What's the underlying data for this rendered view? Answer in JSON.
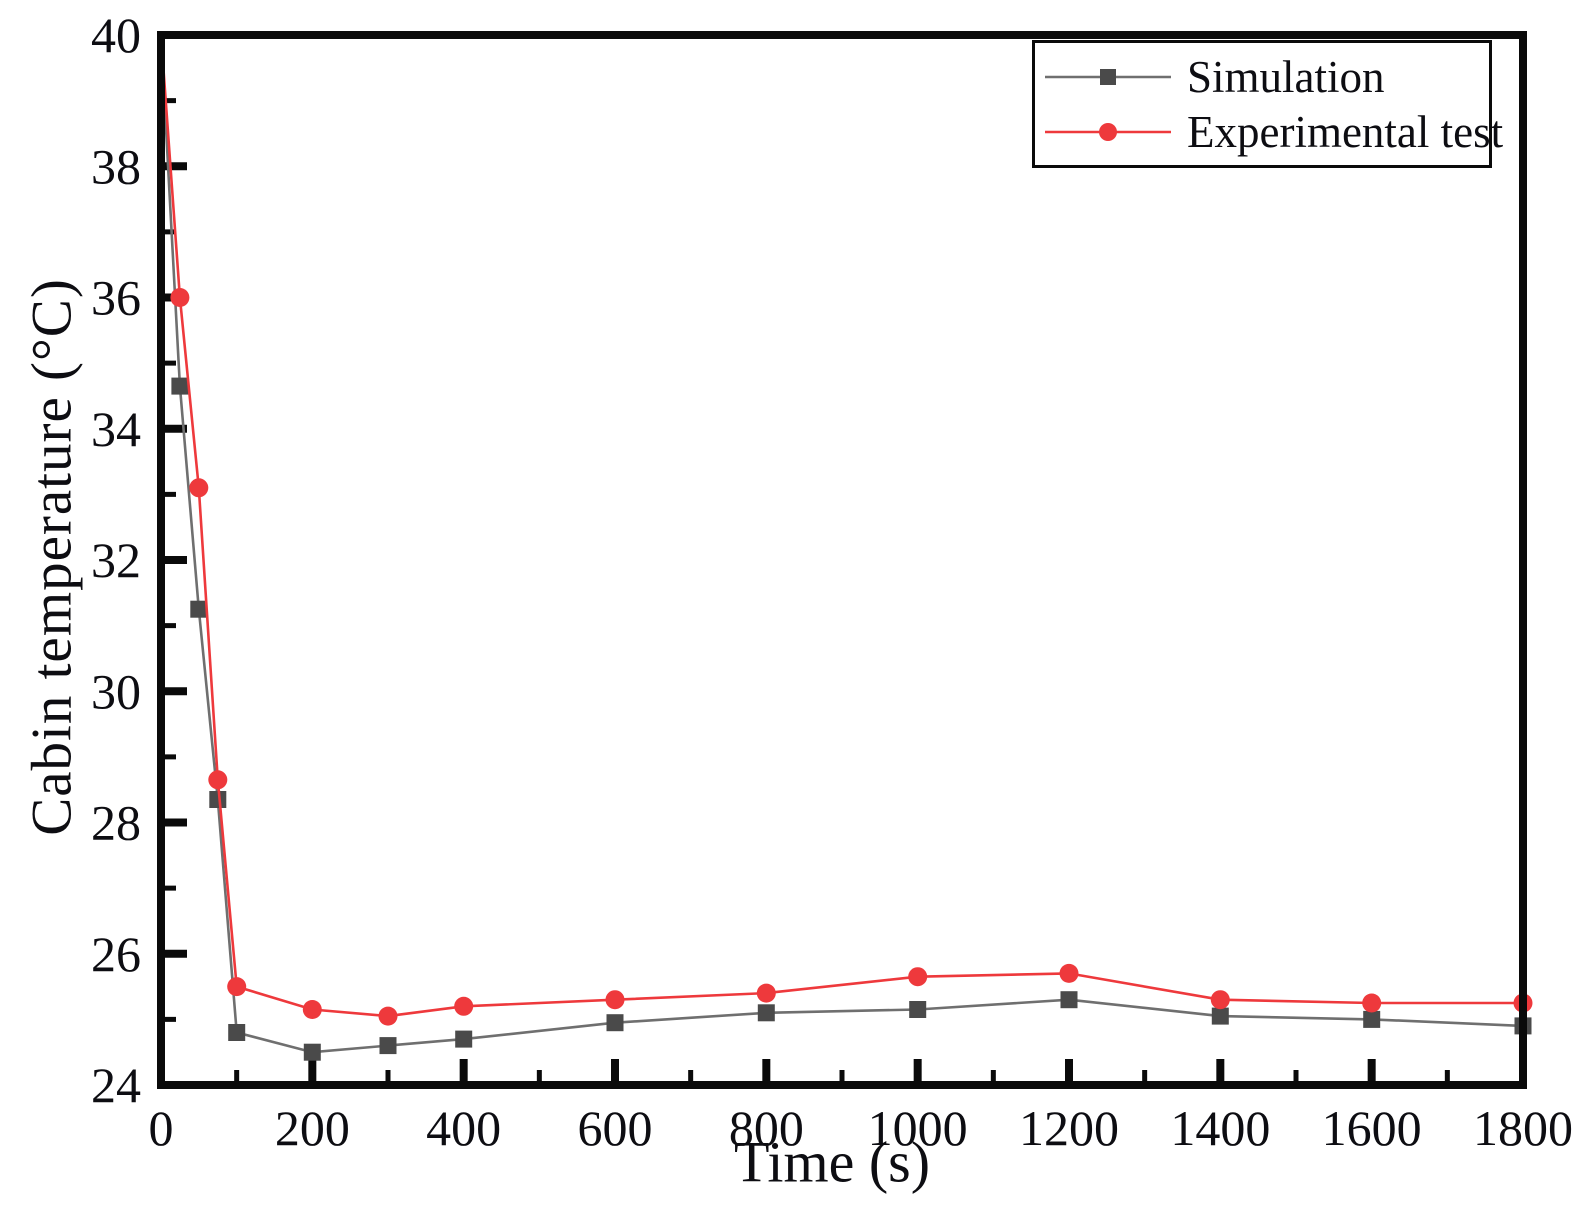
{
  "figure": {
    "background_color": "#ffffff",
    "axis_color": "#0a0a0a"
  },
  "chart_data": {
    "type": "line",
    "title": "",
    "xlabel": "Time (s)",
    "ylabel": "Cabin temperature (°C)",
    "xlim": [
      0,
      1800
    ],
    "ylim": [
      24,
      40
    ],
    "x_major_ticks": [
      0,
      200,
      400,
      600,
      800,
      1000,
      1200,
      1400,
      1600,
      1800
    ],
    "x_tick_labels": [
      "0",
      "200",
      "400",
      "600",
      "800",
      "1000",
      "1200",
      "1400",
      "1600",
      "1800"
    ],
    "x_minor_ticks": [
      100,
      300,
      500,
      700,
      900,
      1100,
      1300,
      1500,
      1700
    ],
    "y_major_ticks": [
      24,
      26,
      28,
      30,
      32,
      34,
      36,
      38,
      40
    ],
    "y_tick_labels": [
      "24",
      "26",
      "28",
      "30",
      "32",
      "34",
      "36",
      "38",
      "40"
    ],
    "y_minor_ticks": [
      25,
      27,
      29,
      31,
      33,
      35,
      37,
      39
    ],
    "grid": false,
    "legend_position": "top-right",
    "x": [
      0,
      25,
      50,
      75,
      100,
      200,
      300,
      400,
      600,
      800,
      1000,
      1200,
      1400,
      1600,
      1800
    ],
    "series": [
      {
        "name": "Simulation",
        "marker": "square",
        "marker_color": "#4a4a4a",
        "line_color": "#6f6f6f",
        "values": [
          40.0,
          34.65,
          31.25,
          28.35,
          24.8,
          24.5,
          24.6,
          24.7,
          24.95,
          25.1,
          25.15,
          25.3,
          25.05,
          25.0,
          24.9
        ]
      },
      {
        "name": "Experimental test",
        "marker": "circle",
        "marker_color": "#ee393c",
        "line_color": "#ee393c",
        "values": [
          40.0,
          36.0,
          33.1,
          28.65,
          25.5,
          25.15,
          25.05,
          25.2,
          25.3,
          25.4,
          25.65,
          25.7,
          25.3,
          25.25,
          25.25
        ]
      }
    ]
  }
}
